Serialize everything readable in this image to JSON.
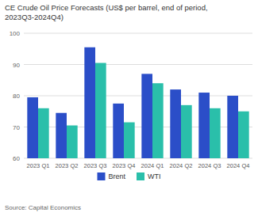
{
  "chart_data": {
    "type": "bar",
    "title": "CE Crude Oil Price Forecasts (US$ per barrel, end of period,\n2023Q3-2024Q4)",
    "categories": [
      "2023 Q1",
      "2023 Q2",
      "2023 Q3",
      "2023 Q4",
      "2024 Q1",
      "2024 Q2",
      "2024 Q3",
      "2024 Q4"
    ],
    "series": [
      {
        "name": "Brent",
        "color": "#2b4ec8",
        "values": [
          79.5,
          74.5,
          95.5,
          77.5,
          87.0,
          82.0,
          81.0,
          80.0
        ]
      },
      {
        "name": "WTI",
        "color": "#2abfaa",
        "values": [
          76.0,
          70.5,
          90.5,
          71.5,
          84.0,
          77.0,
          76.0,
          75.0
        ]
      }
    ],
    "ylim": [
      60,
      100
    ],
    "yticks": [
      60,
      70,
      80,
      90,
      100
    ],
    "grid": true,
    "legend": "bottom",
    "source": "Source: Capital Economics"
  }
}
